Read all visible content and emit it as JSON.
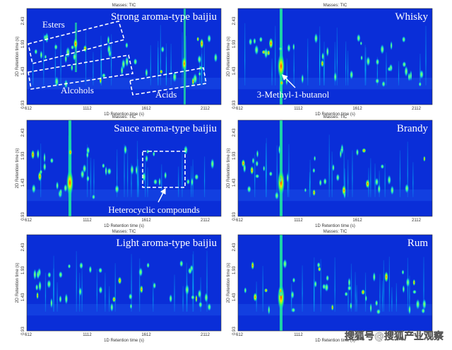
{
  "panels": [
    {
      "title": "Strong aroma-type baijiu",
      "annotations": [
        "Esters",
        "Alcohols",
        "Acids"
      ]
    },
    {
      "title": "Whisky",
      "annotations": [
        "3-Methyl-1-butanol"
      ]
    },
    {
      "title": "Sauce aroma-type baijiu",
      "annotations": [
        "Heterocyclic compounds"
      ]
    },
    {
      "title": "Brandy"
    },
    {
      "title": "Light aroma-type baijiu"
    },
    {
      "title": "Rum"
    }
  ],
  "axes": {
    "header": "Masses: TIC",
    "x_label": "1D Retention time (s)",
    "y_label": "2D Retention time (s)",
    "x_ticks": [
      "612",
      "1112",
      "1612",
      "2112"
    ],
    "y_ticks": [
      "0.93",
      "1.43",
      "1.93",
      "2.43"
    ]
  },
  "watermark": "搜狐号@搜狐产业观察"
}
